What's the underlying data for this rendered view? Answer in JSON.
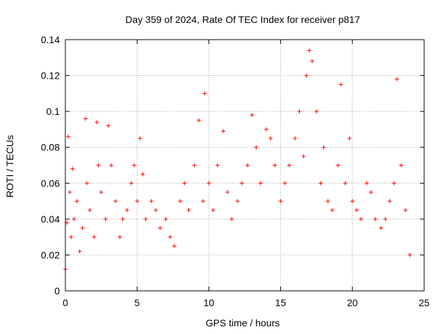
{
  "chart_data": {
    "type": "scatter",
    "title": "Day 359 of 2024, Rate Of TEC Index for receiver p817",
    "xlabel": "GPS time / hours",
    "ylabel": "ROTI / TECUs",
    "xlim": [
      0,
      25
    ],
    "ylim": [
      0,
      0.14
    ],
    "xticks": [
      "0",
      "5",
      "10",
      "15",
      "20",
      "25"
    ],
    "yticks": [
      "0",
      "0.02",
      "0.04",
      "0.06",
      "0.08",
      "0.1",
      "0.12",
      "0.14"
    ],
    "grid": true,
    "marker": "+",
    "color": "#ff0000",
    "series": [
      {
        "x": [
          0.0,
          0.1,
          0.2,
          0.3,
          0.4,
          0.5,
          0.6,
          0.8,
          1.0,
          1.2,
          1.4,
          1.5,
          1.7,
          2.0,
          2.2,
          2.3,
          2.5,
          2.8,
          3.0,
          3.2,
          3.5,
          3.8,
          4.0,
          4.3,
          4.6,
          4.8,
          5.0,
          5.2,
          5.4,
          5.6,
          6.0,
          6.3,
          6.6,
          7.0,
          7.3,
          7.6,
          8.0,
          8.3,
          8.6,
          9.0,
          9.3,
          9.6,
          9.7,
          10.0,
          10.3,
          10.6,
          11.0,
          11.3,
          11.6,
          12.0,
          12.3,
          12.7,
          13.0,
          13.3,
          13.6,
          14.0,
          14.3,
          14.6,
          15.0,
          15.3,
          15.6,
          16.0,
          16.3,
          16.6,
          16.8,
          17.0,
          17.2,
          17.5,
          17.8,
          18.0,
          18.3,
          18.6,
          19.0,
          19.2,
          19.5,
          19.8,
          20.0,
          20.3,
          20.6,
          21.0,
          21.3,
          21.6,
          22.0,
          22.3,
          22.6,
          22.9,
          23.1,
          23.4,
          23.7,
          24.0
        ],
        "y": [
          0.012,
          0.038,
          0.086,
          0.055,
          0.03,
          0.068,
          0.04,
          0.05,
          0.022,
          0.035,
          0.096,
          0.06,
          0.045,
          0.03,
          0.094,
          0.07,
          0.055,
          0.04,
          0.092,
          0.07,
          0.05,
          0.03,
          0.04,
          0.045,
          0.06,
          0.07,
          0.05,
          0.085,
          0.065,
          0.04,
          0.05,
          0.045,
          0.035,
          0.04,
          0.03,
          0.025,
          0.05,
          0.06,
          0.045,
          0.07,
          0.095,
          0.05,
          0.11,
          0.06,
          0.045,
          0.07,
          0.089,
          0.055,
          0.04,
          0.05,
          0.06,
          0.07,
          0.098,
          0.08,
          0.06,
          0.09,
          0.085,
          0.07,
          0.05,
          0.06,
          0.07,
          0.085,
          0.1,
          0.075,
          0.12,
          0.134,
          0.128,
          0.1,
          0.06,
          0.08,
          0.05,
          0.045,
          0.07,
          0.115,
          0.06,
          0.085,
          0.05,
          0.045,
          0.04,
          0.06,
          0.055,
          0.04,
          0.035,
          0.04,
          0.05,
          0.06,
          0.118,
          0.07,
          0.045,
          0.02
        ]
      }
    ]
  }
}
